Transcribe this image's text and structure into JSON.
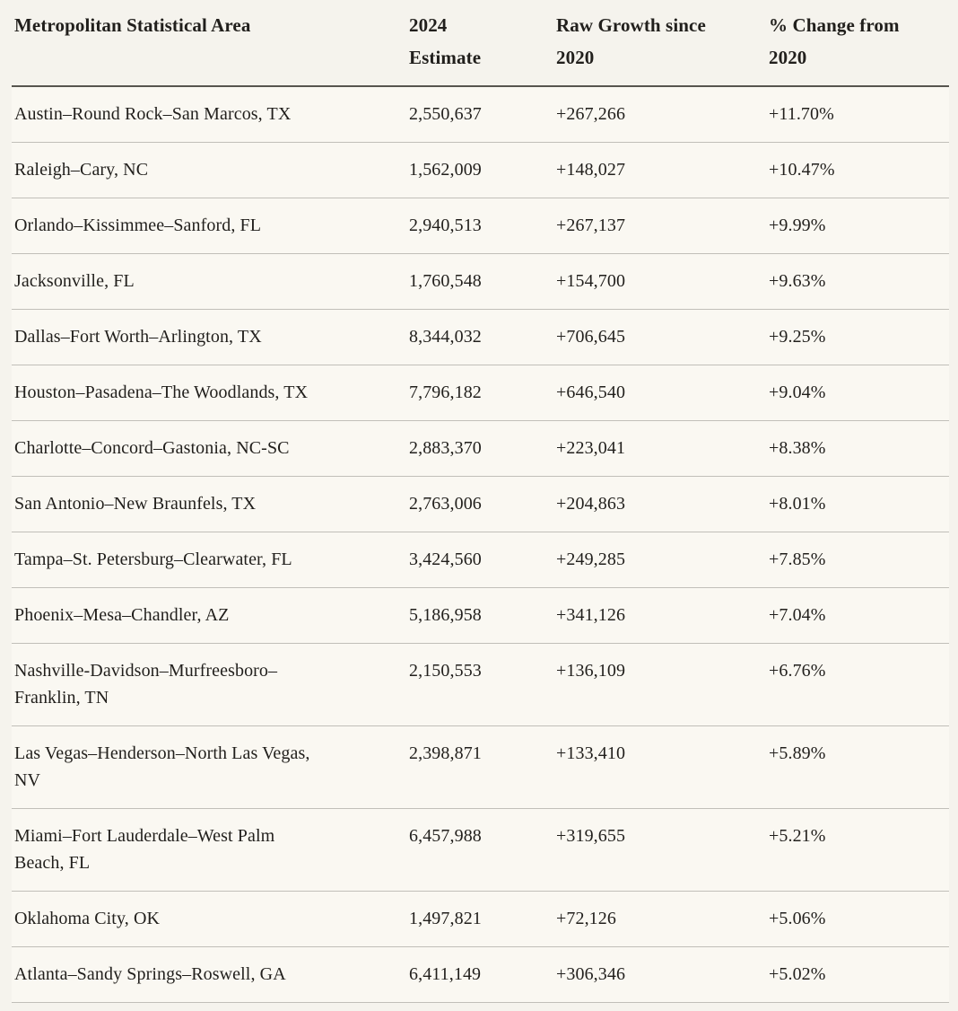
{
  "colors": {
    "page_background": "#f5f3ed",
    "row_background": "#faf8f2",
    "text": "#211f1c",
    "row_divider": "#c1bfb9",
    "header_divider": "#57554f"
  },
  "chart_data": {
    "type": "table",
    "title": "",
    "columns": [
      "Metropolitan Statistical Area",
      "2024 Estimate",
      "Raw Growth since 2020",
      "% Change from 2020"
    ],
    "rows": [
      [
        "Austin–Round Rock–San Marcos, TX",
        "2,550,637",
        "+267,266",
        "+11.70%"
      ],
      [
        "Raleigh–Cary, NC",
        "1,562,009",
        "+148,027",
        "+10.47%"
      ],
      [
        "Orlando–Kissimmee–Sanford, FL",
        "2,940,513",
        "+267,137",
        "+9.99%"
      ],
      [
        "Jacksonville, FL",
        "1,760,548",
        "+154,700",
        "+9.63%"
      ],
      [
        "Dallas–Fort Worth–Arlington, TX",
        "8,344,032",
        "+706,645",
        "+9.25%"
      ],
      [
        "Houston–Pasadena–The Woodlands, TX",
        "7,796,182",
        "+646,540",
        "+9.04%"
      ],
      [
        "Charlotte–Concord–Gastonia, NC-SC",
        "2,883,370",
        "+223,041",
        "+8.38%"
      ],
      [
        "San Antonio–New Braunfels, TX",
        "2,763,006",
        "+204,863",
        "+8.01%"
      ],
      [
        "Tampa–St. Petersburg–Clearwater, FL",
        "3,424,560",
        "+249,285",
        "+7.85%"
      ],
      [
        "Phoenix–Mesa–Chandler, AZ",
        "5,186,958",
        "+341,126",
        "+7.04%"
      ],
      [
        "Nashville-Davidson–Murfreesboro–Franklin, TN",
        "2,150,553",
        "+136,109",
        "+6.76%"
      ],
      [
        "Las Vegas–Henderson–North Las Vegas, NV",
        "2,398,871",
        "+133,410",
        "+5.89%"
      ],
      [
        "Miami–Fort Lauderdale–West Palm Beach, FL",
        "6,457,988",
        "+319,655",
        "+5.21%"
      ],
      [
        "Oklahoma City, OK",
        "1,497,821",
        "+72,126",
        "+5.06%"
      ],
      [
        "Atlanta–Sandy Springs–Roswell, GA",
        "6,411,149",
        "+306,346",
        "+5.02%"
      ]
    ]
  }
}
